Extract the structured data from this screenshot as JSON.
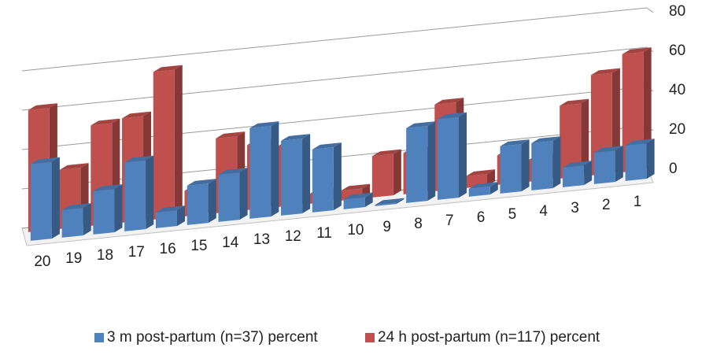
{
  "chart_data": {
    "type": "bar",
    "subtype": "3d-clustered-column",
    "categories": [
      "1",
      "2",
      "3",
      "4",
      "5",
      "6",
      "7",
      "8",
      "9",
      "10",
      "11",
      "12",
      "13",
      "14",
      "15",
      "16",
      "17",
      "18",
      "19",
      "20"
    ],
    "series": [
      {
        "name": "3 m post-partum (n=37) percent",
        "color": "#4f81bd",
        "values": [
          18,
          16,
          10,
          24,
          24,
          4,
          41,
          38,
          0,
          5,
          32,
          38,
          46,
          24,
          20,
          8,
          35,
          22,
          14,
          39
        ]
      },
      {
        "name": "24 h post-partum (n=117) percent",
        "color": "#c0504d",
        "values": [
          60,
          51,
          37,
          11,
          15,
          6,
          44,
          21,
          21,
          5,
          5,
          31,
          33,
          38,
          13,
          75,
          53,
          51,
          30,
          62
        ]
      }
    ],
    "ylim": [
      0,
      80
    ],
    "yticks": [
      "0",
      "20",
      "40",
      "60",
      "80"
    ],
    "grid": true,
    "legend_position": "bottom"
  }
}
